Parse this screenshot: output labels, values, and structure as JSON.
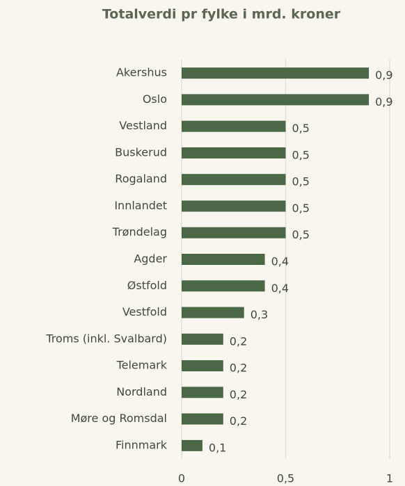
{
  "chart_data": {
    "type": "bar",
    "orientation": "horizontal",
    "title": "Totalverdi pr fylke i mrd. kroner",
    "categories": [
      "Akershus",
      "Oslo",
      "Vestland",
      "Buskerud",
      "Rogaland",
      "Innlandet",
      "Trøndelag",
      "Agder",
      "Østfold",
      "Vestfold",
      "Troms (inkl. Svalbard)",
      "Telemark",
      "Nordland",
      "Møre og Romsdal",
      "Finnmark"
    ],
    "values": [
      0.9,
      0.9,
      0.5,
      0.5,
      0.5,
      0.5,
      0.5,
      0.4,
      0.4,
      0.3,
      0.2,
      0.2,
      0.2,
      0.2,
      0.1
    ],
    "value_labels": [
      "0,9",
      "0,9",
      "0,5",
      "0,5",
      "0,5",
      "0,5",
      "0,5",
      "0,4",
      "0,4",
      "0,3",
      "0,2",
      "0,2",
      "0,2",
      "0,2",
      "0,1"
    ],
    "color": "#4a6845",
    "xlim": [
      0,
      1
    ],
    "xticks": [
      0,
      {
        "value": 0.5,
        "label": "0,5"
      },
      1
    ],
    "grid": true
  }
}
